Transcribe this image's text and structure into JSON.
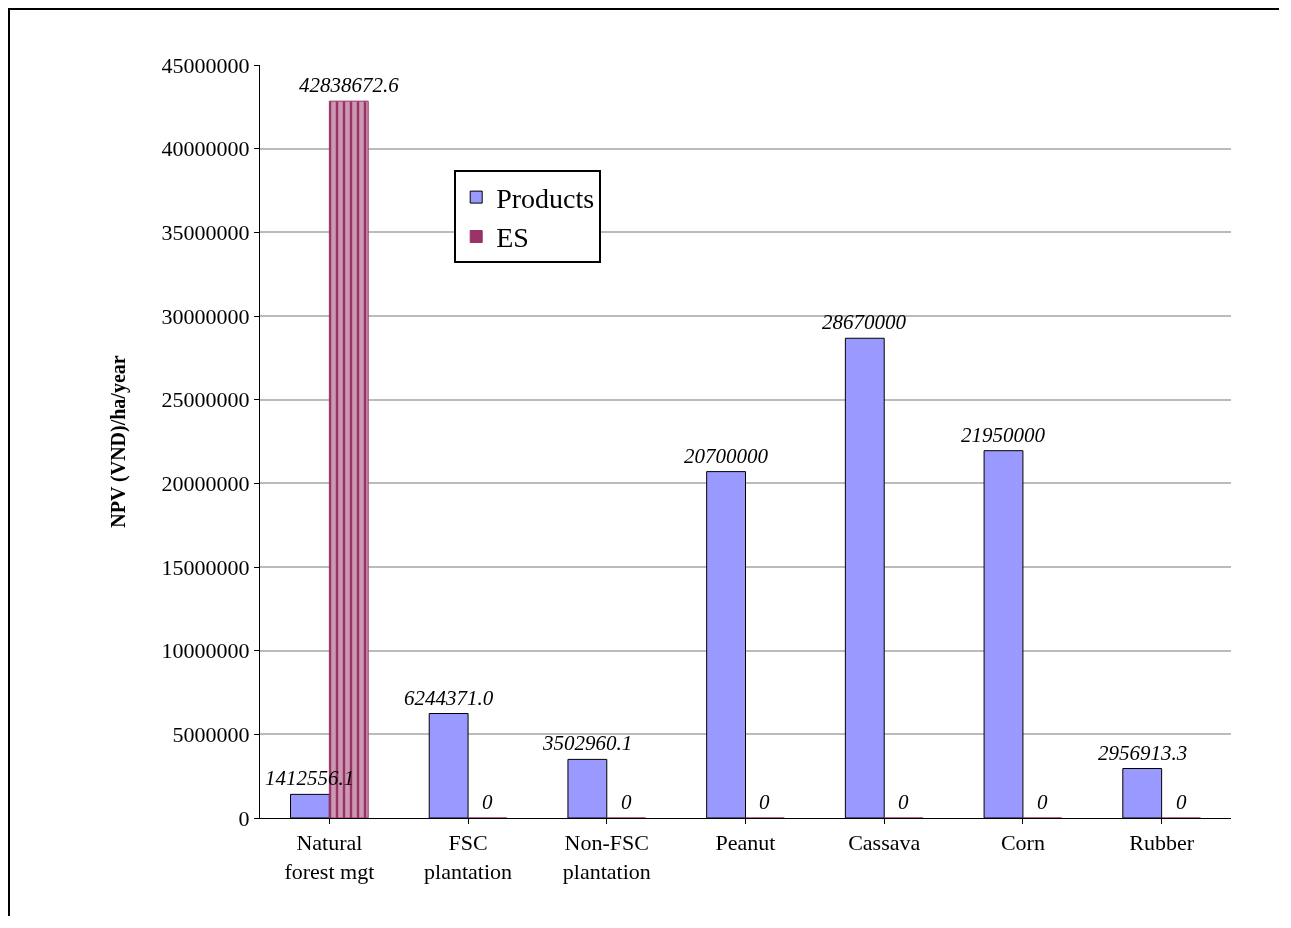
{
  "chart_data": {
    "type": "bar",
    "ylabel": "NPV (VND)/ha/year",
    "categories": [
      "Natural\nforest mgt",
      "FSC\nplantation",
      "Non-FSC\nplantation",
      "Peanut",
      "Cassava",
      "Corn",
      "Rubber"
    ],
    "series": [
      {
        "name": "Products",
        "color": "#9999ff",
        "values": [
          1412556.1,
          6244371.0,
          3502960.1,
          20700000,
          28670000,
          21950000,
          2956913.3
        ],
        "value_labels": [
          "1412556.1",
          "6244371.0",
          "3502960.1",
          "20700000",
          "28670000",
          "21950000",
          "2956913.3"
        ]
      },
      {
        "name": "ES",
        "color": "#993366",
        "values": [
          42838672.6,
          0,
          0,
          0,
          0,
          0,
          0
        ],
        "value_labels": [
          "42838672.6",
          "0",
          "0",
          "0",
          "0",
          "0",
          "0"
        ]
      }
    ],
    "ylim": [
      0,
      45000000
    ],
    "yticks": [
      0,
      5000000,
      10000000,
      15000000,
      20000000,
      25000000,
      30000000,
      35000000,
      40000000,
      45000000
    ],
    "grid": "y",
    "legend": "top left"
  }
}
